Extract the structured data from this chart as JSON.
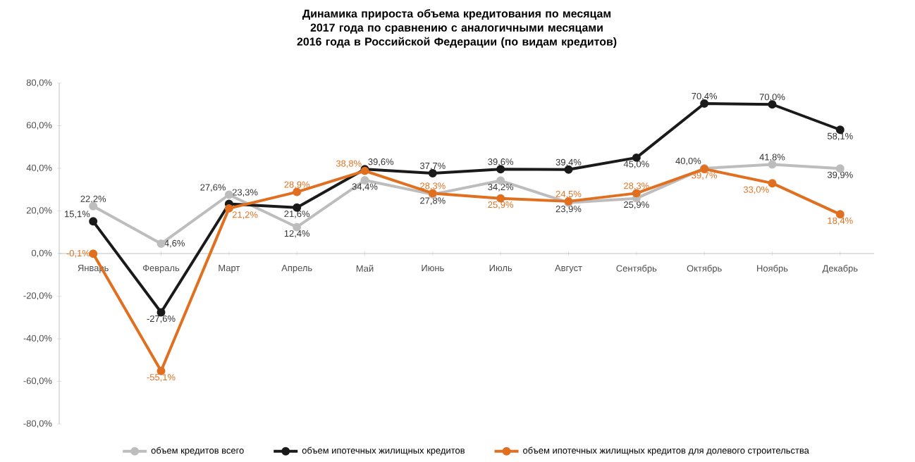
{
  "chart_data": {
    "type": "line",
    "title": "Динамика прироста объема кредитования по месяцам 2017 года по сравнению с аналогичными месяцами 2016 года в Российской Федерации (по видам кредитов)",
    "categories": [
      "Январь",
      "Февраль",
      "Март",
      "Апрель",
      "Май",
      "Июнь",
      "Июль",
      "Август",
      "Сентябрь",
      "Октябрь",
      "Ноябрь",
      "Декабрь"
    ],
    "series": [
      {
        "name": "объем кредитов  всего",
        "color": "#bdbdbd",
        "values": [
          22.2,
          4.6,
          27.6,
          12.4,
          34.4,
          27.8,
          34.2,
          23.9,
          25.9,
          40.0,
          41.8,
          39.9
        ],
        "value_labels": [
          "22,2%",
          "4,6%",
          "27,6%",
          "12,4%",
          "34,4%",
          "27,8%",
          "34,2%",
          "23,9%",
          "25,9%",
          "40,0%",
          "41,8%",
          "39,9%"
        ]
      },
      {
        "name": "объем ипотечных  жилищных  кредитов",
        "color": "#1a1a1a",
        "values": [
          15.1,
          -27.6,
          23.3,
          21.6,
          39.6,
          37.7,
          39.6,
          39.4,
          45.0,
          70.4,
          70.0,
          58.1
        ],
        "value_labels": [
          "15,1%",
          "-27,6%",
          "23,3%",
          "21,6%",
          "39,6%",
          "37,7%",
          "39,6%",
          "39,4%",
          "45,0%",
          "70,4%",
          "70,0%",
          "58,1%"
        ]
      },
      {
        "name": "объем ипотечных  жилищных  кредитов  для долевого  строительства",
        "color": "#e07020",
        "values": [
          -0.1,
          -55.1,
          21.2,
          28.9,
          38.8,
          28.3,
          25.9,
          24.5,
          28.3,
          39.7,
          33.0,
          18.4
        ],
        "value_labels": [
          "-0,1%",
          "-55,1%",
          "21,2%",
          "28,9%",
          "38,8%",
          "28,3%",
          "25,9%",
          "24,5%",
          "28,3%",
          "39,7%",
          "33,0%",
          "18,4%"
        ]
      }
    ],
    "ylim": [
      -80,
      80
    ],
    "yticks": [
      {
        "value": -80,
        "label": "-80,0%"
      },
      {
        "value": -60,
        "label": "-60,0%"
      },
      {
        "value": -40,
        "label": "-40,0%"
      },
      {
        "value": -20,
        "label": "-20,0%"
      },
      {
        "value": 0,
        "label": "0,0%"
      },
      {
        "value": 20,
        "label": "20,0%"
      },
      {
        "value": 40,
        "label": "40,0%"
      },
      {
        "value": 60,
        "label": "60,0%"
      },
      {
        "value": 80,
        "label": "80,0%"
      }
    ],
    "legend": "bottom",
    "marker": "circle",
    "line_style": "solid",
    "grid": false
  }
}
